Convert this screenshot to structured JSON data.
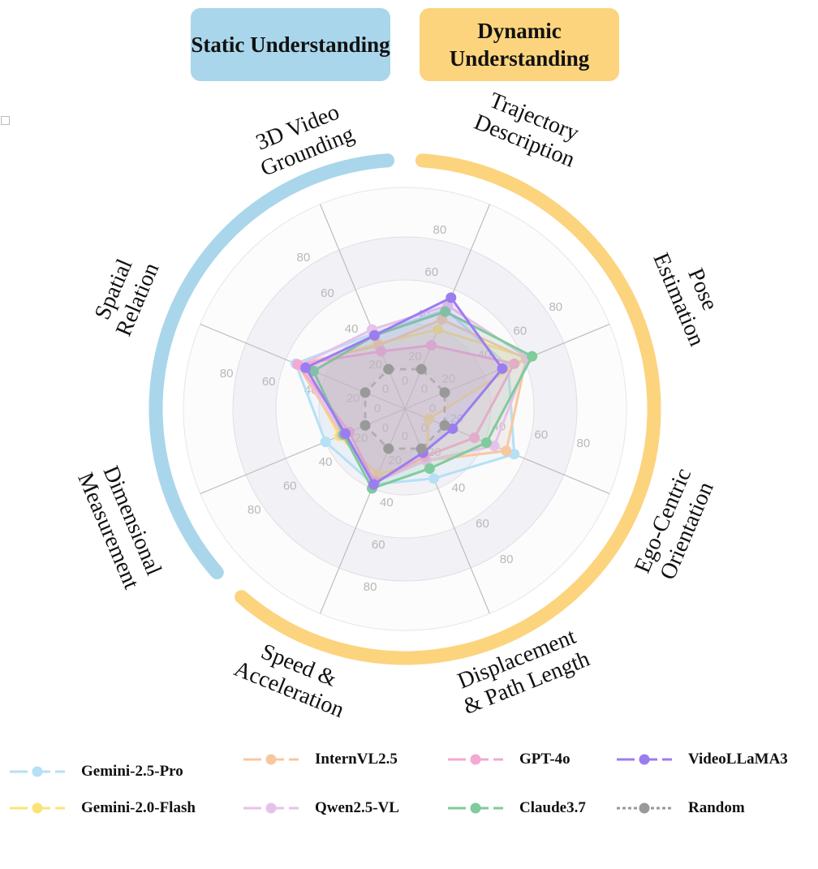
{
  "headers": {
    "static": "Static Understanding",
    "static_color": "#a9d6eb",
    "dynamic": "Dynamic Understanding",
    "dynamic_color": "#fcd47e"
  },
  "chart_data": {
    "type": "radar",
    "categories": [
      [
        "3D Video",
        "Grounding"
      ],
      [
        "Trajectory",
        "Description"
      ],
      [
        "Pose",
        "Estimation"
      ],
      [
        "Ego-Centric",
        "Orientation"
      ],
      [
        "Displacement",
        "& Path Length"
      ],
      [
        "Speed &",
        "Acceleration"
      ],
      [
        "Dimensional",
        "Measurement"
      ],
      [
        "Spatial",
        "Relation"
      ]
    ],
    "ticks": [
      0,
      20,
      40,
      60,
      80
    ],
    "rlim": [
      0,
      100
    ],
    "grid": true,
    "legend": "bottom",
    "series": [
      {
        "name": "Gemini-2.5-Pro",
        "color": "#b5e0f6",
        "values": [
          38,
          50,
          52,
          55,
          35,
          38,
          40,
          55
        ]
      },
      {
        "name": "Gemini-2.0-Flash",
        "color": "#fae47a",
        "values": [
          33,
          40,
          62,
          12,
          26,
          33,
          33,
          52
        ]
      },
      {
        "name": "InternVL2.5",
        "color": "#f7c8a0",
        "values": [
          32,
          45,
          61,
          51,
          26,
          36,
          32,
          54
        ]
      },
      {
        "name": "Qwen2.5-VL",
        "color": "#e6c2ea",
        "values": [
          40,
          52,
          62,
          45,
          26,
          37,
          31,
          53
        ]
      },
      {
        "name": "GPT-4o",
        "color": "#f5a8d2",
        "values": [
          29,
          32,
          55,
          35,
          24,
          37,
          28,
          54
        ]
      },
      {
        "name": "Claude3.7",
        "color": "#7fcb9b",
        "values": [
          37,
          49,
          64,
          41,
          30,
          40,
          31,
          46
        ]
      },
      {
        "name": "VideoLLaMA3",
        "color": "#9b7df0",
        "values": [
          37,
          56,
          49,
          24,
          22,
          38,
          30,
          50
        ]
      },
      {
        "name": "Random",
        "color": "#999999",
        "dashed": true,
        "values": [
          20,
          20,
          20,
          20,
          20,
          20,
          20,
          20
        ]
      }
    ]
  }
}
